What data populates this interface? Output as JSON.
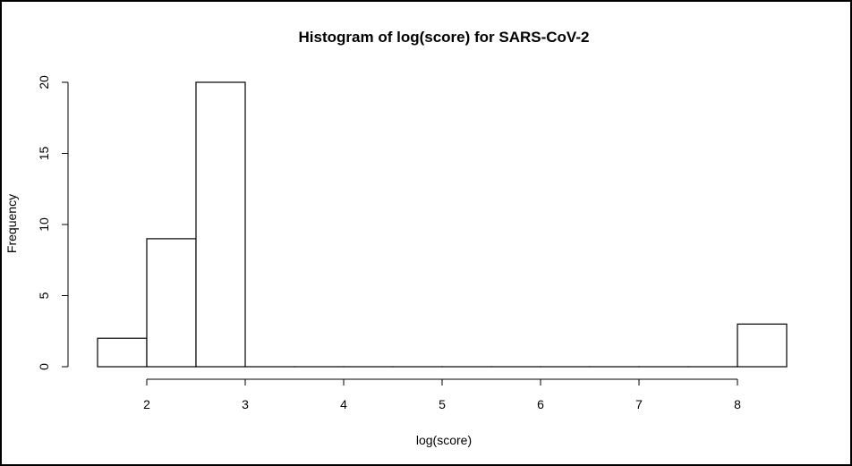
{
  "chart_data": {
    "type": "bar",
    "title": "Histogram of log(score) for SARS-CoV-2",
    "xlabel": "log(score)",
    "ylabel": "Frequency",
    "bins": [
      {
        "x0": 1.5,
        "x1": 2.0,
        "count": 2
      },
      {
        "x0": 2.0,
        "x1": 2.5,
        "count": 9
      },
      {
        "x0": 2.5,
        "x1": 3.0,
        "count": 20
      },
      {
        "x0": 3.0,
        "x1": 3.5,
        "count": 0
      },
      {
        "x0": 3.5,
        "x1": 4.0,
        "count": 0
      },
      {
        "x0": 4.0,
        "x1": 4.5,
        "count": 0
      },
      {
        "x0": 4.5,
        "x1": 5.0,
        "count": 0
      },
      {
        "x0": 5.0,
        "x1": 5.5,
        "count": 0
      },
      {
        "x0": 5.5,
        "x1": 6.0,
        "count": 0
      },
      {
        "x0": 6.0,
        "x1": 6.5,
        "count": 0
      },
      {
        "x0": 6.5,
        "x1": 7.0,
        "count": 0
      },
      {
        "x0": 7.0,
        "x1": 7.5,
        "count": 0
      },
      {
        "x0": 7.5,
        "x1": 8.0,
        "count": 0
      },
      {
        "x0": 8.0,
        "x1": 8.5,
        "count": 3
      }
    ],
    "xticks": [
      2,
      3,
      4,
      5,
      6,
      7,
      8
    ],
    "yticks": [
      0,
      5,
      10,
      15,
      20
    ],
    "grid": false,
    "colors": {
      "bar_fill": "#ffffff",
      "bar_stroke": "#000000",
      "frame": "#000000"
    }
  }
}
